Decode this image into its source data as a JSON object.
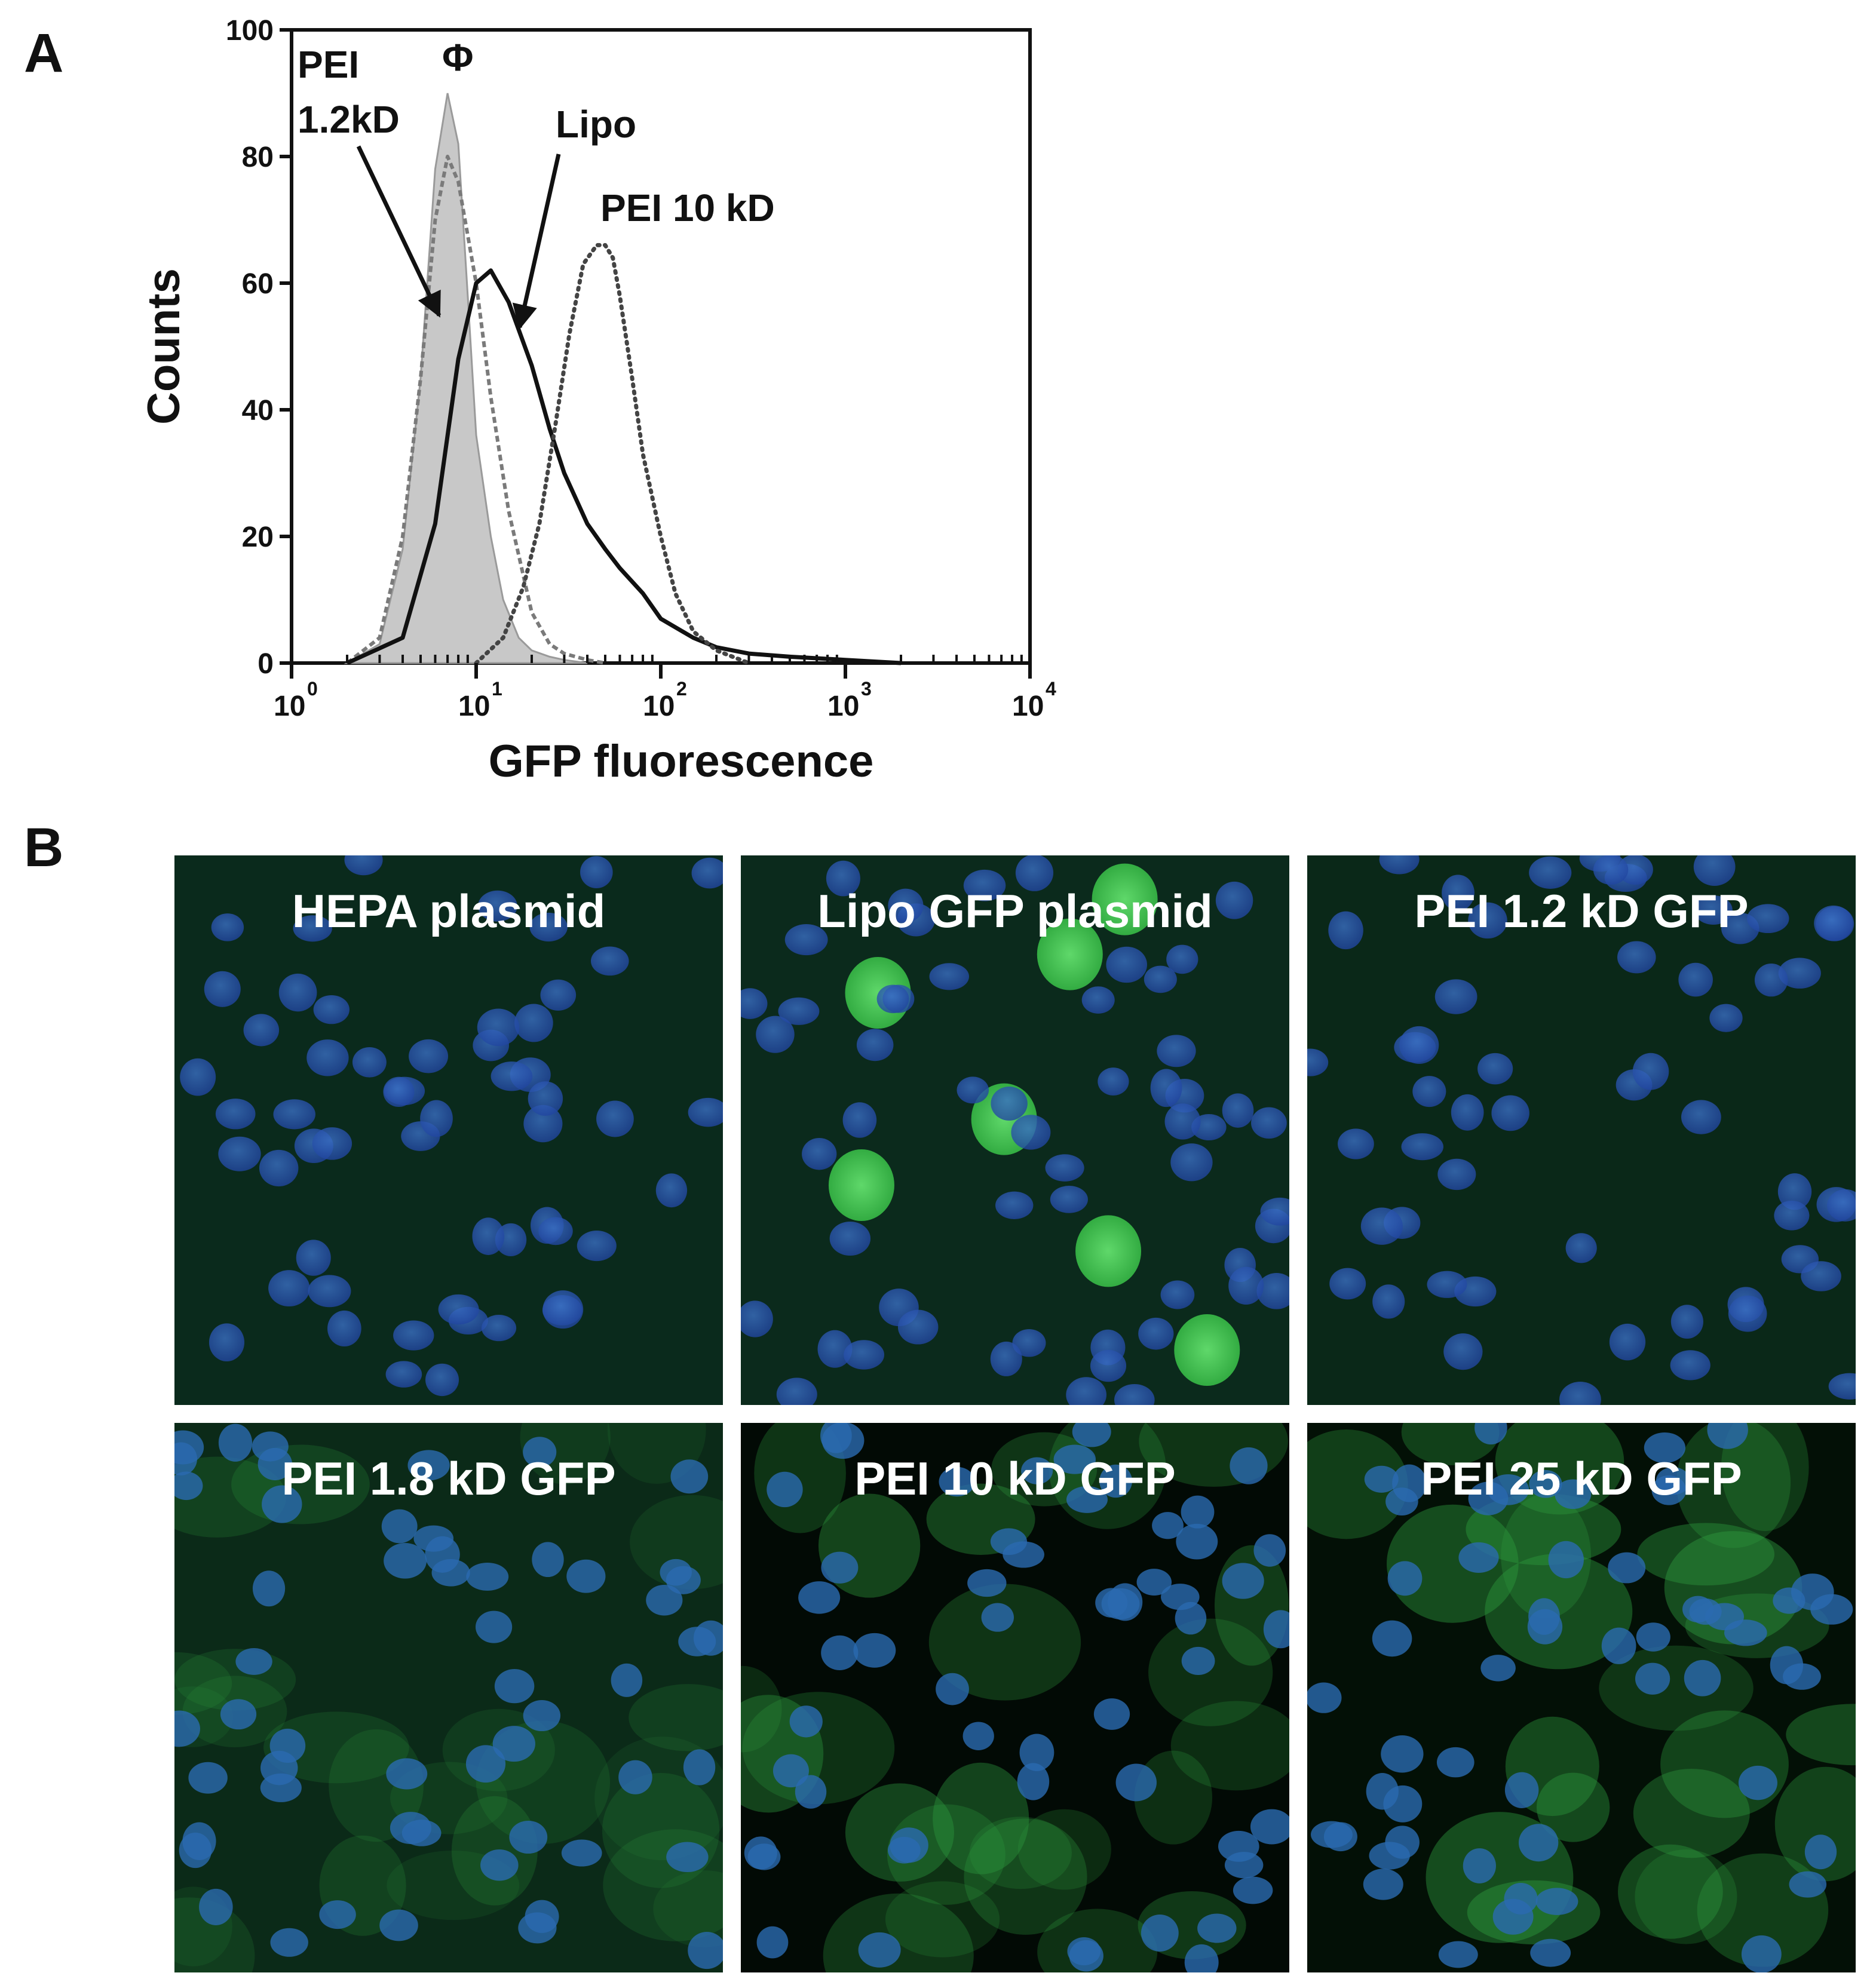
{
  "panel_a": {
    "letter": "A"
  },
  "panel_b": {
    "letter": "B"
  },
  "chart_data": {
    "type": "line",
    "title": "",
    "xlabel": "GFP fluorescence",
    "ylabel": "Counts",
    "x_scale": "log",
    "xlim": [
      1,
      10000
    ],
    "ylim": [
      0,
      100
    ],
    "y_ticks": [
      "0",
      "20",
      "40",
      "60",
      "80",
      "100"
    ],
    "x_ticks": [
      {
        "base": "10",
        "exp": "0",
        "value": 1
      },
      {
        "base": "10",
        "exp": "1",
        "value": 10
      },
      {
        "base": "10",
        "exp": "2",
        "value": 100
      },
      {
        "base": "10",
        "exp": "3",
        "value": 1000
      },
      {
        "base": "10",
        "exp": "4",
        "value": 10000
      }
    ],
    "annotations": [
      {
        "text": "PEI",
        "target": "pei12"
      },
      {
        "text": "1.2kD",
        "target": "pei12"
      },
      {
        "text": "Φ",
        "target": "phi"
      },
      {
        "text": "Lipo",
        "target": "lipo"
      },
      {
        "text": "PEI 10 kD",
        "target": "pei10"
      }
    ],
    "series": [
      {
        "key": "phi",
        "style": "filled",
        "color": "#c8c8c8",
        "x": [
          2,
          3,
          4,
          5,
          6,
          7,
          8,
          9,
          10,
          12,
          14,
          17,
          20,
          25,
          30,
          40
        ],
        "y": [
          0,
          3,
          18,
          45,
          78,
          90,
          82,
          58,
          36,
          20,
          10,
          4,
          2,
          1,
          0.5,
          0
        ]
      },
      {
        "key": "pei12",
        "style": "dashed-gray",
        "color": "#7a7a7a",
        "x": [
          2,
          3,
          4,
          5,
          6,
          7,
          8,
          10,
          12,
          15,
          20,
          25,
          30,
          40,
          50
        ],
        "y": [
          0,
          4,
          20,
          45,
          70,
          80,
          76,
          60,
          42,
          24,
          8,
          3,
          1.5,
          0.5,
          0
        ]
      },
      {
        "key": "lipo",
        "style": "solid-black",
        "color": "#111111",
        "x": [
          2,
          4,
          6,
          8,
          10,
          12,
          15,
          20,
          25,
          30,
          40,
          50,
          60,
          80,
          100,
          150,
          200,
          300,
          500,
          1000,
          2000
        ],
        "y": [
          0,
          4,
          22,
          48,
          60,
          62,
          57,
          47,
          37,
          30,
          22,
          18,
          15,
          11,
          7,
          4,
          2.5,
          1.5,
          1,
          0.5,
          0
        ]
      },
      {
        "key": "pei10",
        "style": "dotted",
        "color": "#444444",
        "x": [
          10,
          14,
          18,
          22,
          27,
          32,
          38,
          45,
          50,
          55,
          60,
          70,
          80,
          100,
          120,
          150,
          200,
          300
        ],
        "y": [
          0,
          4,
          12,
          22,
          38,
          52,
          63,
          66,
          66,
          64,
          58,
          45,
          33,
          20,
          11,
          5,
          2,
          0
        ]
      }
    ]
  },
  "micrographs": [
    {
      "label": "HEPA plasmid"
    },
    {
      "label": "Lipo GFP plasmid"
    },
    {
      "label": "PEI 1.2 kD GFP"
    },
    {
      "label": "PEI 1.8 kD GFP"
    },
    {
      "label": "PEI 10 kD GFP"
    },
    {
      "label": "PEI 25 kD GFP"
    }
  ]
}
